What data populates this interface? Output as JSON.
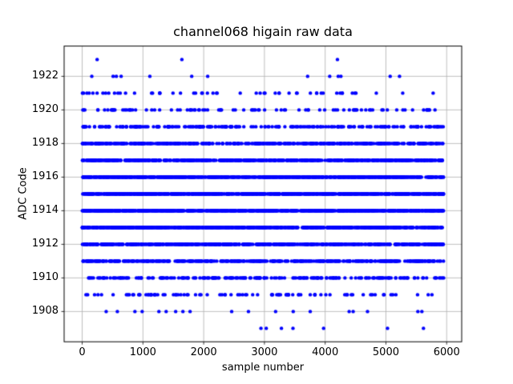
{
  "figure": {
    "title": "channel068 higain raw data",
    "xlabel": "sample number",
    "ylabel": "ADC Code"
  },
  "chart_data": {
    "type": "scatter",
    "title": "channel068 higain raw data",
    "xlabel": "sample number",
    "ylabel": "ADC Code",
    "grid": true,
    "legend": "none",
    "xlim": [
      -297.5,
      6247.5
    ],
    "ylim": [
      1906.2,
      1923.8
    ],
    "xticks": [
      0,
      1000,
      2000,
      3000,
      4000,
      5000,
      6000
    ],
    "yticks": [
      1908,
      1910,
      1912,
      1914,
      1916,
      1918,
      1920,
      1922
    ],
    "sample_range": [
      0,
      5950
    ],
    "marker": {
      "shape": "dot",
      "radius_px": 2.2
    },
    "colors": {
      "marker": "#0000ff",
      "grid": "#b0b0b0",
      "frame": "#000000",
      "background": "#ffffff",
      "text": "#000000"
    },
    "levels": [
      {
        "adc_code": 1907,
        "points": [
          2943,
          3030,
          3280,
          3470,
          3974,
          5026,
          5618
        ]
      },
      {
        "adc_code": 1908,
        "points": [
          395,
          579,
          868,
          987,
          1263,
          1382,
          1539,
          1658,
          1776,
          2461,
          2737,
          3184,
          3474,
          3754,
          4395,
          4461,
          4697,
          5526,
          5592
        ]
      },
      {
        "adc_code": 1909,
        "count": 90
      },
      {
        "adc_code": 1910,
        "count": 210
      },
      {
        "adc_code": 1911,
        "count": 440
      },
      {
        "adc_code": 1912,
        "count": 640
      },
      {
        "adc_code": 1913,
        "count": 800
      },
      {
        "adc_code": 1914,
        "count": 870
      },
      {
        "adc_code": 1915,
        "count": 870
      },
      {
        "adc_code": 1916,
        "count": 800
      },
      {
        "adc_code": 1917,
        "count": 640
      },
      {
        "adc_code": 1918,
        "count": 440
      },
      {
        "adc_code": 1919,
        "count": 220
      },
      {
        "adc_code": 1920,
        "count": 92
      },
      {
        "adc_code": 1921,
        "count": 55
      },
      {
        "adc_code": 1922,
        "points": [
          158,
          509,
          562,
          641,
          1114,
          1803,
          2066,
          3711,
          4075,
          4215,
          4259,
          5070,
          5224
        ]
      },
      {
        "adc_code": 1923,
        "points": [
          246,
          1641,
          4202
        ]
      }
    ]
  }
}
